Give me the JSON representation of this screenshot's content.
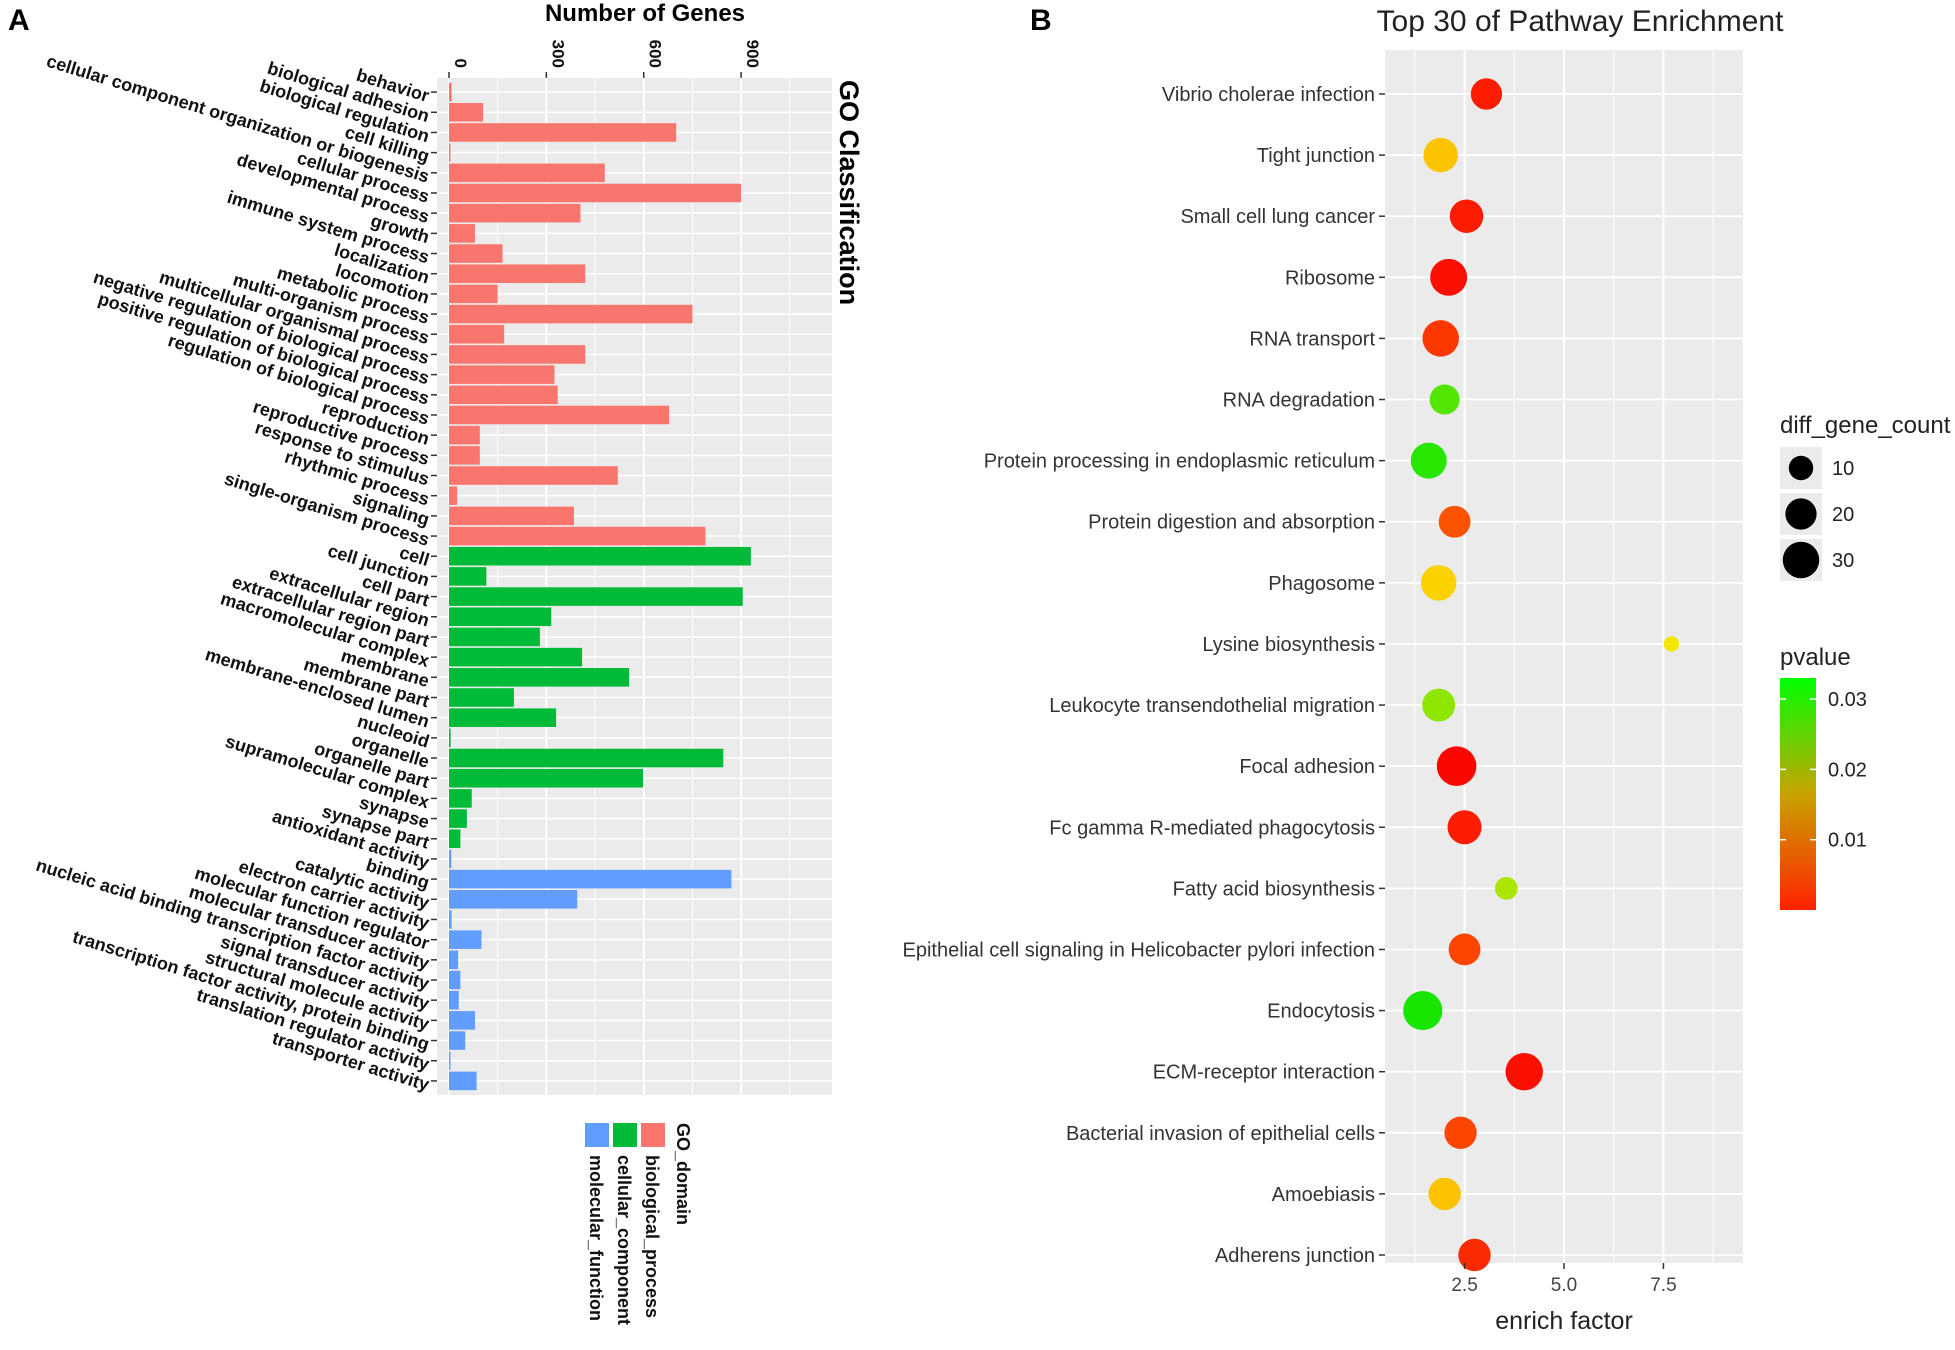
{
  "panels": {
    "a_label": "A",
    "b_label": "B"
  },
  "colors": {
    "biological_process": "#F8766D",
    "cellular_component": "#00BA38",
    "molecular_function": "#619CFF",
    "panel_bg": "#EBEBEB",
    "grid": "#FFFFFF"
  },
  "chart_data": [
    {
      "type": "bar",
      "orientation": "horizontal",
      "title": "GO Classification",
      "xlabel": "Number of Genes",
      "xlim": [
        0,
        1180
      ],
      "xticks": [
        0,
        300,
        600,
        900
      ],
      "legend": {
        "title": "GO_domain",
        "position": "bottom",
        "entries": [
          "biological_process",
          "cellular_component",
          "molecular_function"
        ]
      },
      "categories": [
        {
          "name": "behavior",
          "value": 8,
          "domain": "biological_process"
        },
        {
          "name": "biological adhesion",
          "value": 105,
          "domain": "biological_process"
        },
        {
          "name": "biological regulation",
          "value": 700,
          "domain": "biological_process"
        },
        {
          "name": "cell killing",
          "value": 4,
          "domain": "biological_process"
        },
        {
          "name": "cellular component organization or biogenesis",
          "value": 480,
          "domain": "biological_process"
        },
        {
          "name": "cellular process",
          "value": 900,
          "domain": "biological_process"
        },
        {
          "name": "developmental process",
          "value": 405,
          "domain": "biological_process"
        },
        {
          "name": "growth",
          "value": 80,
          "domain": "biological_process"
        },
        {
          "name": "immune system process",
          "value": 165,
          "domain": "biological_process"
        },
        {
          "name": "localization",
          "value": 420,
          "domain": "biological_process"
        },
        {
          "name": "locomotion",
          "value": 150,
          "domain": "biological_process"
        },
        {
          "name": "metabolic process",
          "value": 750,
          "domain": "biological_process"
        },
        {
          "name": "multi-organism process",
          "value": 170,
          "domain": "biological_process"
        },
        {
          "name": "multicellular organismal process",
          "value": 420,
          "domain": "biological_process"
        },
        {
          "name": "negative regulation of biological process",
          "value": 325,
          "domain": "biological_process"
        },
        {
          "name": "positive regulation of biological process",
          "value": 335,
          "domain": "biological_process"
        },
        {
          "name": "regulation of biological process",
          "value": 678,
          "domain": "biological_process"
        },
        {
          "name": "reproduction",
          "value": 95,
          "domain": "biological_process"
        },
        {
          "name": "reproductive process",
          "value": 95,
          "domain": "biological_process"
        },
        {
          "name": "response to stimulus",
          "value": 520,
          "domain": "biological_process"
        },
        {
          "name": "rhythmic process",
          "value": 25,
          "domain": "biological_process"
        },
        {
          "name": "signaling",
          "value": 385,
          "domain": "biological_process"
        },
        {
          "name": "single-organism process",
          "value": 790,
          "domain": "biological_process"
        },
        {
          "name": "cell",
          "value": 930,
          "domain": "cellular_component"
        },
        {
          "name": "cell junction",
          "value": 115,
          "domain": "cellular_component"
        },
        {
          "name": "cell part",
          "value": 905,
          "domain": "cellular_component"
        },
        {
          "name": "extracellular region",
          "value": 315,
          "domain": "cellular_component"
        },
        {
          "name": "extracellular region part",
          "value": 280,
          "domain": "cellular_component"
        },
        {
          "name": "macromolecular complex",
          "value": 410,
          "domain": "cellular_component"
        },
        {
          "name": "membrane",
          "value": 555,
          "domain": "cellular_component"
        },
        {
          "name": "membrane part",
          "value": 200,
          "domain": "cellular_component"
        },
        {
          "name": "membrane-enclosed lumen",
          "value": 330,
          "domain": "cellular_component"
        },
        {
          "name": "nucleoid",
          "value": 5,
          "domain": "cellular_component"
        },
        {
          "name": "organelle",
          "value": 845,
          "domain": "cellular_component"
        },
        {
          "name": "organelle part",
          "value": 598,
          "domain": "cellular_component"
        },
        {
          "name": "supramolecular complex",
          "value": 70,
          "domain": "cellular_component"
        },
        {
          "name": "synapse",
          "value": 55,
          "domain": "cellular_component"
        },
        {
          "name": "synapse part",
          "value": 35,
          "domain": "cellular_component"
        },
        {
          "name": "antioxidant activity",
          "value": 7,
          "domain": "molecular_function"
        },
        {
          "name": "binding",
          "value": 870,
          "domain": "molecular_function"
        },
        {
          "name": "catalytic activity",
          "value": 395,
          "domain": "molecular_function"
        },
        {
          "name": "electron carrier activity",
          "value": 8,
          "domain": "molecular_function"
        },
        {
          "name": "molecular function regulator",
          "value": 100,
          "domain": "molecular_function"
        },
        {
          "name": "molecular transducer activity",
          "value": 28,
          "domain": "molecular_function"
        },
        {
          "name": "nucleic acid binding transcription factor activity",
          "value": 35,
          "domain": "molecular_function"
        },
        {
          "name": "signal transducer activity",
          "value": 30,
          "domain": "molecular_function"
        },
        {
          "name": "structural molecule activity",
          "value": 80,
          "domain": "molecular_function"
        },
        {
          "name": "transcription factor activity, protein binding",
          "value": 50,
          "domain": "molecular_function"
        },
        {
          "name": "translation regulator activity",
          "value": 3,
          "domain": "molecular_function"
        },
        {
          "name": "transporter activity",
          "value": 85,
          "domain": "molecular_function"
        }
      ]
    },
    {
      "type": "scatter",
      "title": "Top 30 of Pathway Enrichment",
      "xlabel": "enrich factor",
      "xlim": [
        0.5,
        9.5
      ],
      "xticks": [
        2.5,
        5.0,
        7.5
      ],
      "xtick_labels": [
        "2.5",
        "5.0",
        "7.5"
      ],
      "size_legend": {
        "title": "diff_gene_count",
        "values": [
          10,
          20,
          30
        ]
      },
      "color_legend": {
        "title": "pvalue",
        "ticks": [
          0.03,
          0.02,
          0.01
        ],
        "tick_labels": [
          "0.03",
          "0.02",
          "0.01"
        ],
        "range": [
          0.0,
          0.033
        ],
        "low_color": "#FF0000",
        "high_color": "#00FF00"
      },
      "points": [
        {
          "pathway": "Vibrio cholerae infection",
          "x": 3.05,
          "count": 20,
          "pvalue": 0.002
        },
        {
          "pathway": "Tight junction",
          "x": 1.9,
          "count": 26,
          "pvalue": 0.014
        },
        {
          "pathway": "Small cell lung cancer",
          "x": 2.55,
          "count": 24,
          "pvalue": 0.002
        },
        {
          "pathway": "Ribosome",
          "x": 2.1,
          "count": 31,
          "pvalue": 0.001
        },
        {
          "pathway": "RNA transport",
          "x": 1.9,
          "count": 30,
          "pvalue": 0.004
        },
        {
          "pathway": "RNA degradation",
          "x": 2.0,
          "count": 18,
          "pvalue": 0.028
        },
        {
          "pathway": "Protein processing in endoplasmic reticulum",
          "x": 1.6,
          "count": 29,
          "pvalue": 0.031
        },
        {
          "pathway": "Protein digestion and absorption",
          "x": 2.25,
          "count": 21,
          "pvalue": 0.006
        },
        {
          "pathway": "Phagosome",
          "x": 1.85,
          "count": 28,
          "pvalue": 0.015
        },
        {
          "pathway": "Lysine biosynthesis",
          "x": 7.7,
          "count": 2,
          "pvalue": 0.017
        },
        {
          "pathway": "Leukocyte transendothelial migration",
          "x": 1.85,
          "count": 23,
          "pvalue": 0.024
        },
        {
          "pathway": "Focal adhesion",
          "x": 2.3,
          "count": 37,
          "pvalue": 0.0005
        },
        {
          "pathway": "Fc gamma R-mediated phagocytosis",
          "x": 2.5,
          "count": 25,
          "pvalue": 0.002
        },
        {
          "pathway": "Fatty acid biosynthesis",
          "x": 3.55,
          "count": 8,
          "pvalue": 0.022
        },
        {
          "pathway": "Epithelial cell signaling in Helicobacter pylori infection",
          "x": 2.5,
          "count": 21,
          "pvalue": 0.005
        },
        {
          "pathway": "Endocytosis",
          "x": 1.45,
          "count": 36,
          "pvalue": 0.032
        },
        {
          "pathway": "ECM-receptor interaction",
          "x": 4.0,
          "count": 32,
          "pvalue": 0.001
        },
        {
          "pathway": "Bacterial invasion of epithelial cells",
          "x": 2.4,
          "count": 22,
          "pvalue": 0.005
        },
        {
          "pathway": "Amoebiasis",
          "x": 2.0,
          "count": 22,
          "pvalue": 0.014
        },
        {
          "pathway": "Adherens junction",
          "x": 2.75,
          "count": 22,
          "pvalue": 0.003
        }
      ]
    }
  ]
}
